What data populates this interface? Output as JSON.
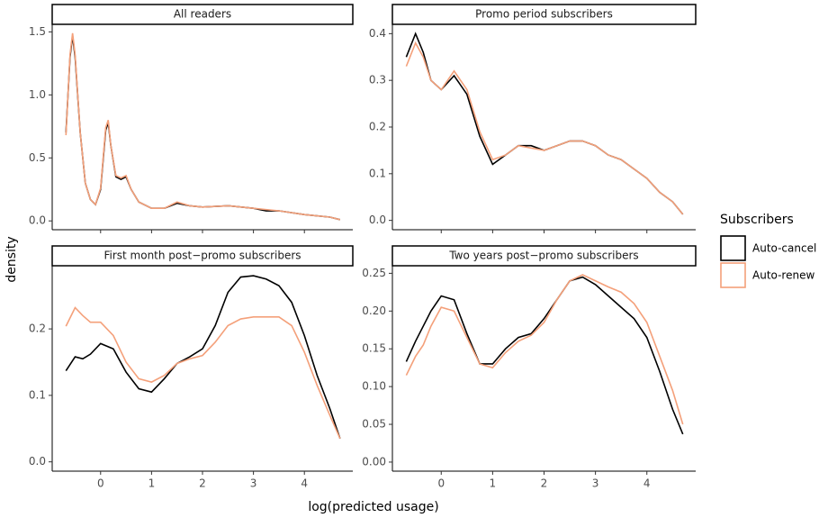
{
  "chart_data": [
    {
      "type": "line",
      "title": "All readers",
      "x": [
        -0.68,
        -0.6,
        -0.55,
        -0.5,
        -0.4,
        -0.3,
        -0.2,
        -0.1,
        0,
        0.1,
        0.15,
        0.2,
        0.3,
        0.4,
        0.5,
        0.6,
        0.75,
        1,
        1.25,
        1.5,
        1.75,
        2,
        2.5,
        3,
        3.25,
        3.5,
        4,
        4.5,
        4.7
      ],
      "series": [
        {
          "name": "Auto-cancel",
          "color": "#000000",
          "values": [
            0.7,
            1.3,
            1.47,
            1.3,
            0.7,
            0.3,
            0.17,
            0.13,
            0.25,
            0.72,
            0.78,
            0.6,
            0.35,
            0.33,
            0.35,
            0.25,
            0.15,
            0.1,
            0.1,
            0.14,
            0.12,
            0.11,
            0.12,
            0.1,
            0.08,
            0.08,
            0.05,
            0.03,
            0.01
          ]
        },
        {
          "name": "Auto-renew",
          "color": "#f4a07a",
          "values": [
            0.68,
            1.32,
            1.49,
            1.32,
            0.7,
            0.3,
            0.17,
            0.13,
            0.26,
            0.74,
            0.8,
            0.6,
            0.36,
            0.34,
            0.36,
            0.25,
            0.15,
            0.1,
            0.1,
            0.15,
            0.12,
            0.11,
            0.12,
            0.1,
            0.09,
            0.08,
            0.05,
            0.03,
            0.01
          ]
        }
      ],
      "xlim": [
        -0.95,
        4.95
      ],
      "xticks": [
        0,
        1,
        2,
        3,
        4
      ],
      "ylim": [
        -0.07,
        1.56
      ],
      "yticks": [
        {
          "value": 0,
          "label": "0.0"
        },
        {
          "value": 0.5,
          "label": "0.5"
        },
        {
          "value": 1,
          "label": "1.0"
        },
        {
          "value": 1.5,
          "label": "1.5"
        }
      ]
    },
    {
      "type": "line",
      "title": "Promo period subscribers",
      "x": [
        -0.68,
        -0.5,
        -0.35,
        -0.2,
        0,
        0.25,
        0.5,
        0.75,
        1,
        1.25,
        1.5,
        1.75,
        2,
        2.25,
        2.5,
        2.75,
        3,
        3.25,
        3.5,
        3.75,
        4,
        4.25,
        4.5,
        4.7
      ],
      "series": [
        {
          "name": "Auto-cancel",
          "color": "#000000",
          "values": [
            0.35,
            0.4,
            0.36,
            0.3,
            0.28,
            0.31,
            0.27,
            0.18,
            0.12,
            0.14,
            0.16,
            0.16,
            0.15,
            0.16,
            0.17,
            0.17,
            0.16,
            0.14,
            0.13,
            0.11,
            0.09,
            0.06,
            0.04,
            0.013
          ]
        },
        {
          "name": "Auto-renew",
          "color": "#f4a07a",
          "values": [
            0.33,
            0.38,
            0.35,
            0.3,
            0.28,
            0.32,
            0.28,
            0.19,
            0.13,
            0.14,
            0.16,
            0.155,
            0.15,
            0.16,
            0.17,
            0.17,
            0.16,
            0.14,
            0.13,
            0.11,
            0.09,
            0.06,
            0.04,
            0.013
          ]
        }
      ],
      "xlim": [
        -0.95,
        4.95
      ],
      "xticks": [
        0,
        1,
        2,
        3,
        4
      ],
      "ylim": [
        -0.02,
        0.42
      ],
      "yticks": [
        {
          "value": 0,
          "label": "0.0"
        },
        0.1,
        0.2,
        0.3,
        0.4
      ]
    },
    {
      "type": "line",
      "title": "First month post−promo subscribers",
      "x": [
        -0.68,
        -0.5,
        -0.35,
        -0.2,
        0,
        0.25,
        0.5,
        0.75,
        1,
        1.25,
        1.5,
        1.75,
        2,
        2.25,
        2.5,
        2.75,
        3,
        3.25,
        3.5,
        3.75,
        4,
        4.25,
        4.5,
        4.7
      ],
      "series": [
        {
          "name": "Auto-cancel",
          "color": "#000000",
          "values": [
            0.137,
            0.158,
            0.155,
            0.162,
            0.178,
            0.17,
            0.135,
            0.11,
            0.105,
            0.125,
            0.148,
            0.158,
            0.17,
            0.205,
            0.255,
            0.278,
            0.28,
            0.275,
            0.265,
            0.24,
            0.19,
            0.13,
            0.08,
            0.035
          ]
        },
        {
          "name": "Auto-renew",
          "color": "#f4a07a",
          "values": [
            0.204,
            0.232,
            0.22,
            0.21,
            0.21,
            0.19,
            0.15,
            0.125,
            0.12,
            0.13,
            0.148,
            0.155,
            0.16,
            0.18,
            0.205,
            0.215,
            0.218,
            0.218,
            0.218,
            0.205,
            0.165,
            0.115,
            0.07,
            0.035
          ]
        }
      ],
      "xlim": [
        -0.95,
        4.95
      ],
      "xticks": [
        0,
        1,
        2,
        3,
        4
      ],
      "ylim": [
        -0.014,
        0.295
      ],
      "yticks": [
        {
          "value": 0,
          "label": "0.0"
        },
        0.1,
        0.2
      ]
    },
    {
      "type": "line",
      "title": "Two years post−promo subscribers",
      "x": [
        -0.68,
        -0.5,
        -0.35,
        -0.2,
        0,
        0.25,
        0.5,
        0.75,
        1,
        1.25,
        1.5,
        1.75,
        2,
        2.25,
        2.5,
        2.75,
        3,
        3.25,
        3.5,
        3.75,
        4,
        4.25,
        4.5,
        4.7
      ],
      "series": [
        {
          "name": "Auto-cancel",
          "color": "#000000",
          "values": [
            0.133,
            0.16,
            0.18,
            0.2,
            0.22,
            0.215,
            0.17,
            0.13,
            0.13,
            0.15,
            0.165,
            0.17,
            0.19,
            0.215,
            0.24,
            0.245,
            0.235,
            0.22,
            0.205,
            0.19,
            0.165,
            0.12,
            0.07,
            0.037
          ]
        },
        {
          "name": "Auto-renew",
          "color": "#f4a07a",
          "values": [
            0.115,
            0.14,
            0.155,
            0.18,
            0.205,
            0.2,
            0.165,
            0.13,
            0.125,
            0.145,
            0.16,
            0.168,
            0.185,
            0.215,
            0.24,
            0.248,
            0.24,
            0.232,
            0.225,
            0.21,
            0.185,
            0.14,
            0.095,
            0.05
          ]
        }
      ],
      "xlim": [
        -0.95,
        4.95
      ],
      "xticks": [
        0,
        1,
        2,
        3,
        4
      ],
      "ylim": [
        -0.012,
        0.26
      ],
      "yticks": [
        {
          "value": 0,
          "label": "0.00"
        },
        {
          "value": 0.05,
          "label": "0.05"
        },
        {
          "value": 0.1,
          "label": "0.10"
        },
        {
          "value": 0.15,
          "label": "0.15"
        },
        {
          "value": 0.2,
          "label": "0.20"
        },
        {
          "value": 0.25,
          "label": "0.25"
        }
      ]
    }
  ],
  "axis_labels": {
    "x": "log(predicted usage)",
    "y": "density"
  },
  "legend": {
    "title": "Subscribers"
  }
}
